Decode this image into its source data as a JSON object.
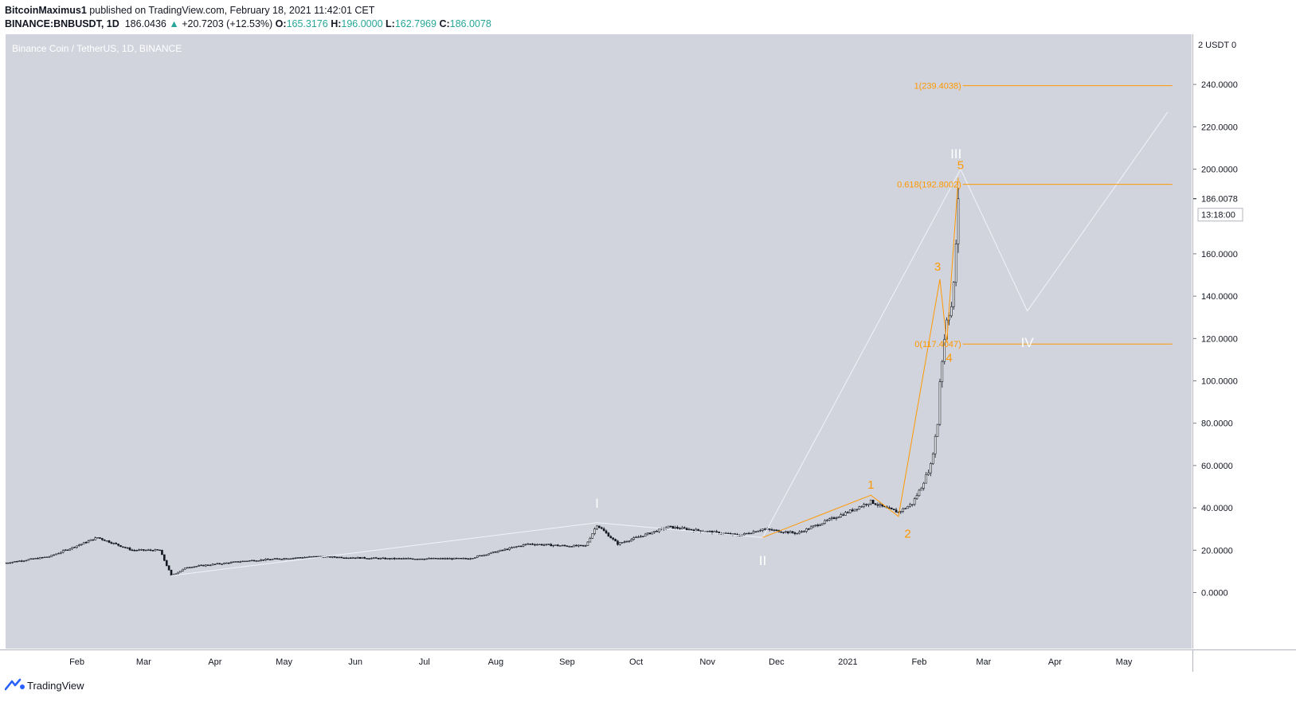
{
  "header": {
    "publisher": "BitcoinMaximus1",
    "published_text": " published on TradingView.com, February 18, 2021 11:42:01 CET",
    "symbol": "BINANCE:BNBUSDT, 1D",
    "last_price": "186.0436",
    "change": "+20.7203 (+12.53%)",
    "o_label": "O:",
    "o_value": "165.3176",
    "h_label": "H:",
    "h_value": "196.0000",
    "l_label": "L:",
    "l_value": "162.7969",
    "c_label": "C:",
    "c_value": "186.0078"
  },
  "panel_title": "Binance Coin / TetherUS, 1D, BINANCE",
  "price_axis": {
    "currency_label": "2 USDT 0",
    "ticks": [
      "240.0000",
      "220.0000",
      "200.0000",
      "160.0000",
      "140.0000",
      "120.0000",
      "100.0000",
      "80.0000",
      "60.0000",
      "40.0000",
      "20.0000",
      "0.0000"
    ],
    "last_price_label": "186.0078",
    "countdown_label": "13:18:00"
  },
  "footer": {
    "brand": "TradingView"
  },
  "colors": {
    "panel_bg": "#d1d4dc",
    "orange": "#ff9800",
    "wave_white": "#f0f3fa",
    "candle": "#131722",
    "teal": "#26a69a"
  },
  "chart_data": {
    "type": "candlestick",
    "title": "Binance Coin / TetherUS, 1D, BINANCE",
    "ylim": [
      -15,
      265
    ],
    "x_ticks": [
      "Feb",
      "Mar",
      "Apr",
      "May",
      "Jun",
      "Jul",
      "Aug",
      "Sep",
      "Oct",
      "Nov",
      "Dec",
      "2021",
      "Feb",
      "Mar",
      "Apr",
      "May"
    ],
    "y_ticks": [
      0,
      20,
      40,
      60,
      80,
      100,
      120,
      140,
      160,
      180,
      200,
      220,
      240
    ],
    "last_price": 186.0078,
    "price_path": {
      "dates": [
        "2020-01-01",
        "2020-01-20",
        "2020-02-10",
        "2020-02-25",
        "2020-03-08",
        "2020-03-13",
        "2020-03-20",
        "2020-04-15",
        "2020-05-15",
        "2020-06-15",
        "2020-07-20",
        "2020-08-15",
        "2020-09-01",
        "2020-09-09",
        "2020-09-14",
        "2020-09-23",
        "2020-10-15",
        "2020-11-15",
        "2020-11-25",
        "2020-12-10",
        "2021-01-01",
        "2021-01-11",
        "2021-01-17",
        "2021-01-23",
        "2021-01-29",
        "2021-02-02",
        "2021-02-06",
        "2021-02-09",
        "2021-02-10",
        "2021-02-13",
        "2021-02-15",
        "2021-02-16",
        "2021-02-17",
        "2021-02-18"
      ],
      "close": [
        14,
        17,
        26,
        20,
        20,
        8,
        12,
        15,
        17,
        16,
        16,
        23,
        22,
        22,
        32,
        23,
        31,
        27,
        30,
        28,
        38,
        43,
        40,
        38,
        42,
        50,
        60,
        80,
        100,
        130,
        135,
        145,
        165,
        186
      ]
    },
    "fib_levels": [
      {
        "label": "1(239.4038)",
        "value": 239.4038
      },
      {
        "label": "0.618(192.8002)",
        "value": 192.8002
      },
      {
        "label": "0(117.4047)",
        "value": 117.4047
      }
    ],
    "wave_labels_major": [
      "I",
      "II",
      "III",
      "IV"
    ],
    "wave_labels_minor": [
      "1",
      "2",
      "3",
      "4",
      "5"
    ]
  }
}
